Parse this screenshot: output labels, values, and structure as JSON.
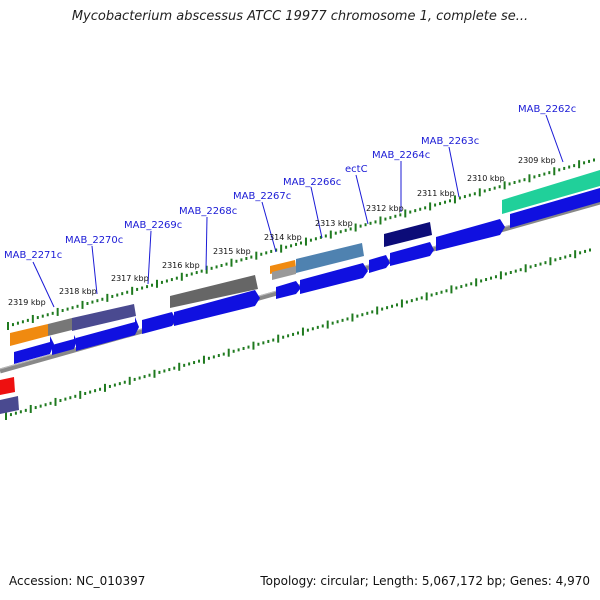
{
  "title": "Mycobacterium abscessus ATCC 19977 chromosome 1, complete se...",
  "footer": {
    "accession": "Accession: NC_010397",
    "summary": "Topology: circular; Length: 5,067,172 bp; Genes: 4,970"
  },
  "colors": {
    "cds": "#1010e0",
    "orange": "#f08a10",
    "gray": "#666666",
    "slate": "#4a4a90",
    "steel": "#4f82b0",
    "navy": "#0c0c78",
    "teal": "#20d09a",
    "red": "#ee1010",
    "tick": "#1f7a1f",
    "backbone": "#888888"
  },
  "gene_labels": [
    "MAB_2271c",
    "MAB_2270c",
    "MAB_2269c",
    "MAB_2268c",
    "MAB_2267c",
    "MAB_2266c",
    "ectC",
    "MAB_2264c",
    "MAB_2263c",
    "MAB_2262c"
  ],
  "kbp_labels": [
    "2319 kbp",
    "2318 kbp",
    "2317 kbp",
    "2316 kbp",
    "2315 kbp",
    "2314 kbp",
    "2313 kbp",
    "2312 kbp",
    "2311 kbp",
    "2310 kbp",
    "2309 kbp"
  ]
}
